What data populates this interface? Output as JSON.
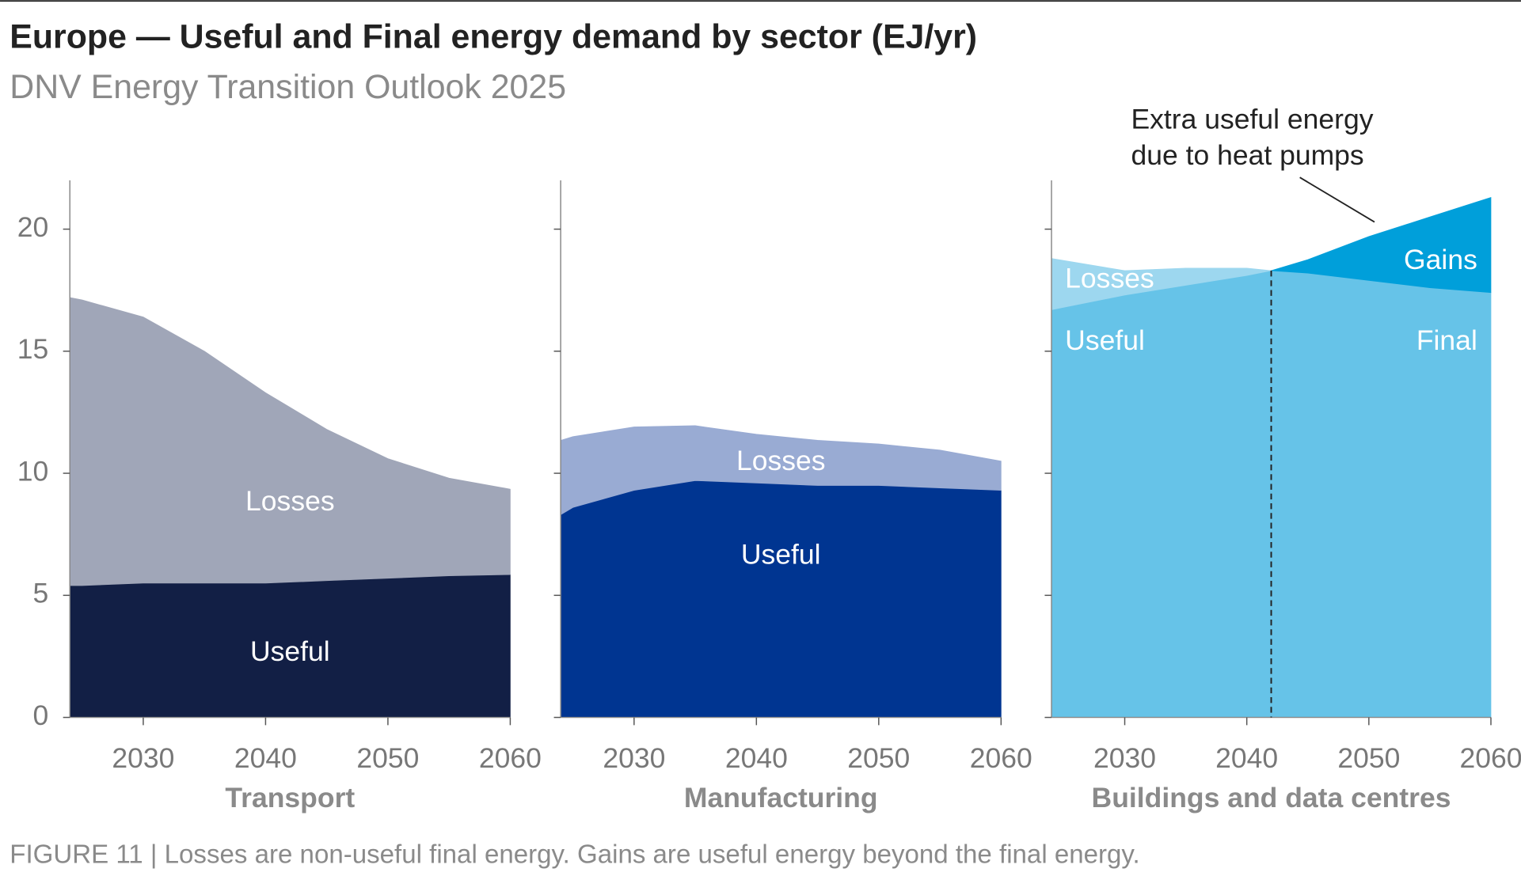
{
  "title": "Europe — Useful and Final energy demand by sector (EJ/yr)",
  "subtitle": "DNV Energy Transition Outlook 2025",
  "caption": "FIGURE 11 | Losses are non-useful final energy. Gains are useful energy beyond the final energy.",
  "chart_data": [
    {
      "type": "area",
      "xlabel": "Transport",
      "x": [
        2024,
        2025,
        2030,
        2035,
        2040,
        2045,
        2050,
        2055,
        2060
      ],
      "xlim": [
        2024,
        2060
      ],
      "xticks": [
        2030,
        2040,
        2050,
        2060
      ],
      "ylim": [
        0,
        22
      ],
      "yticks": [
        0,
        5,
        10,
        15,
        20
      ],
      "series": [
        {
          "name": "Useful",
          "color": "#121f45",
          "values": [
            5.4,
            5.4,
            5.5,
            5.5,
            5.5,
            5.6,
            5.7,
            5.8,
            5.85
          ]
        },
        {
          "name": "Losses",
          "color": "#a0a6b8",
          "values": [
            11.8,
            11.7,
            10.9,
            9.5,
            7.8,
            6.2,
            4.9,
            4.0,
            3.5
          ]
        }
      ]
    },
    {
      "type": "area",
      "xlabel": "Manufacturing",
      "x": [
        2024,
        2025,
        2030,
        2035,
        2040,
        2045,
        2050,
        2055,
        2060
      ],
      "xlim": [
        2024,
        2060
      ],
      "xticks": [
        2030,
        2040,
        2050,
        2060
      ],
      "ylim": [
        0,
        22
      ],
      "series": [
        {
          "name": "Useful",
          "color": "#003591",
          "values": [
            8.3,
            8.6,
            9.3,
            9.7,
            9.6,
            9.5,
            9.5,
            9.4,
            9.3
          ]
        },
        {
          "name": "Losses",
          "color": "#99abd3",
          "values": [
            3.05,
            2.9,
            2.6,
            2.25,
            2.0,
            1.85,
            1.7,
            1.55,
            1.2
          ]
        }
      ]
    },
    {
      "type": "area",
      "xlabel": "Buildings and data centres",
      "x": [
        2024,
        2030,
        2035,
        2040,
        2042,
        2045,
        2050,
        2055,
        2060
      ],
      "xlim": [
        2024,
        2060
      ],
      "xticks": [
        2030,
        2040,
        2050,
        2060
      ],
      "ylim": [
        0,
        22
      ],
      "marker_x": 2042,
      "annotation": [
        "Extra useful energy",
        "due to heat pumps"
      ],
      "series": [
        {
          "name": "Useful",
          "color": "#66c3e8",
          "stack": 1,
          "values": [
            16.7,
            17.3,
            17.7,
            18.1,
            18.3,
            null,
            null,
            null,
            null
          ]
        },
        {
          "name": "Losses",
          "color": "#9dd7ef",
          "stack": 1,
          "values": [
            2.1,
            1.0,
            0.7,
            0.3,
            0,
            null,
            null,
            null,
            null
          ]
        },
        {
          "name": "Final",
          "color": "#66c3e8",
          "stack": 2,
          "values": [
            null,
            null,
            null,
            null,
            18.3,
            18.2,
            17.9,
            17.6,
            17.4
          ]
        },
        {
          "name": "Gains",
          "color": "#009fda",
          "stack": 2,
          "values": [
            null,
            null,
            null,
            null,
            0,
            0.55,
            1.8,
            2.9,
            3.9
          ]
        }
      ]
    }
  ]
}
